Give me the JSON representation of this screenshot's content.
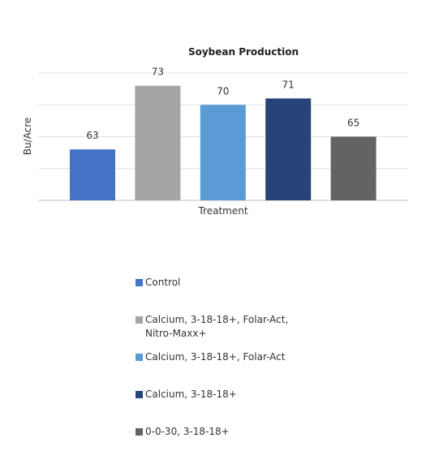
{
  "chart_data": {
    "type": "bar",
    "title": "Soybean Production",
    "xlabel": "Treatment",
    "ylabel": "Bu/Acre",
    "ylim": [
      55,
      75
    ],
    "grid": true,
    "legend_position": "bottom",
    "series": [
      {
        "name": "Control",
        "value": 63,
        "color": "#4472C4"
      },
      {
        "name": "Calcium, 3-18-18+, Folar-Act, Nitro-Maxx+",
        "value": 73,
        "color": "#A5A5A5"
      },
      {
        "name": "Calcium, 3-18-18+, Folar-Act",
        "value": 70,
        "color": "#5B9BD5"
      },
      {
        "name": "Calcium, 3-18-18+",
        "value": 71,
        "color": "#264478"
      },
      {
        "name": "0-0-30, 3-18-18+",
        "value": 65,
        "color": "#636363"
      }
    ]
  }
}
